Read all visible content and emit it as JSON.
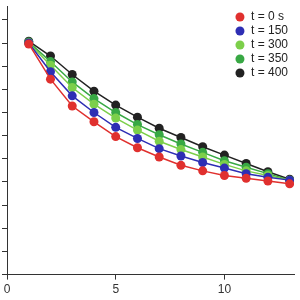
{
  "chart_data": {
    "type": "line",
    "x": [
      1,
      2,
      3,
      4,
      5,
      6,
      7,
      8,
      9,
      10,
      11,
      12,
      13
    ],
    "xlim": [
      0,
      13.2
    ],
    "xticks": [
      0,
      5,
      10
    ],
    "ylim": [
      0,
      11.6
    ],
    "yticks": [
      0,
      1,
      2,
      3,
      4,
      5,
      6,
      7,
      8,
      9,
      10,
      11
    ],
    "tick_labels": "x",
    "grid": false,
    "legend": "upper right",
    "marker": "circle",
    "series": [
      {
        "name": "t = 0 s",
        "color": "#e0302e",
        "values": [
          9.96,
          8.44,
          7.28,
          6.6,
          5.96,
          5.48,
          5.08,
          4.72,
          4.48,
          4.28,
          4.16,
          4.04,
          3.92
        ]
      },
      {
        "name": "t = 150",
        "color": "#2e2eb4",
        "values": [
          10.0,
          8.76,
          7.72,
          7.0,
          6.36,
          5.88,
          5.44,
          5.12,
          4.84,
          4.6,
          4.36,
          4.2,
          4.08
        ]
      },
      {
        "name": "t = 300",
        "color": "#7ccf4a",
        "values": [
          10.0,
          9.04,
          8.08,
          7.36,
          6.76,
          6.24,
          5.76,
          5.4,
          5.08,
          4.76,
          4.48,
          4.28,
          4.08
        ]
      },
      {
        "name": "t = 350",
        "color": "#38a844",
        "values": [
          10.04,
          9.2,
          8.32,
          7.6,
          7.0,
          6.48,
          6.04,
          5.64,
          5.28,
          4.92,
          4.64,
          4.36,
          4.08
        ]
      },
      {
        "name": "t = 400",
        "color": "#222222",
        "values": [
          10.08,
          9.44,
          8.64,
          7.92,
          7.32,
          6.8,
          6.32,
          5.92,
          5.52,
          5.16,
          4.8,
          4.44,
          4.12
        ]
      }
    ]
  }
}
